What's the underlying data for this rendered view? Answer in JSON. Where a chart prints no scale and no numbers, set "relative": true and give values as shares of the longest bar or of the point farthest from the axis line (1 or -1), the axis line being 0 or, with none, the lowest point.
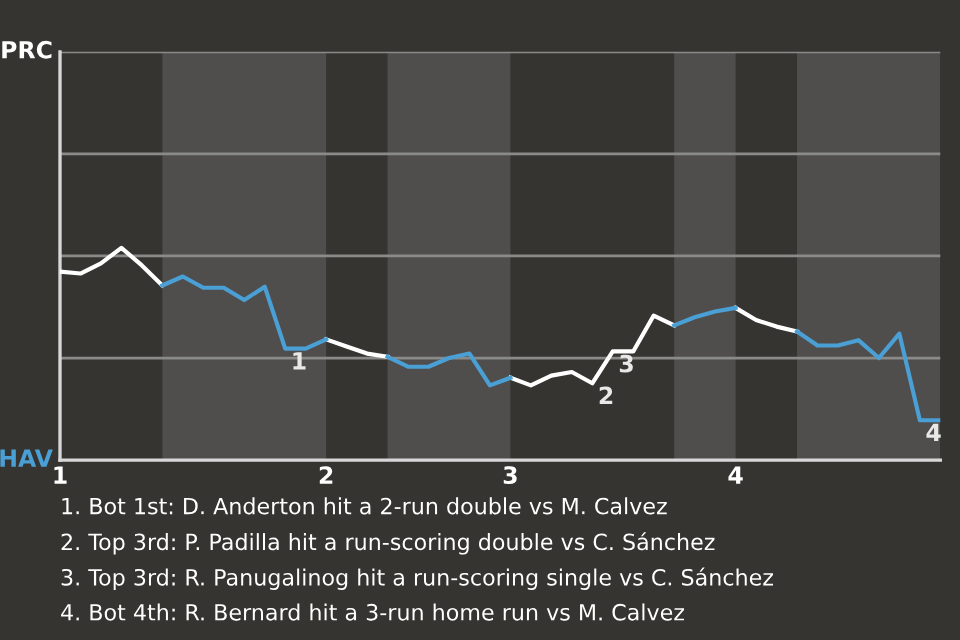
{
  "chart_data": {
    "type": "line",
    "relative": true,
    "categories": [
      "1",
      null,
      null,
      null,
      null,
      null,
      null,
      null,
      null,
      null,
      null,
      null,
      null,
      "2",
      null,
      null,
      null,
      null,
      null,
      null,
      null,
      null,
      "3",
      null,
      null,
      null,
      null,
      null,
      null,
      null,
      null,
      null,
      null,
      "4",
      null,
      null,
      null,
      null,
      null,
      null,
      null,
      null,
      null,
      null
    ],
    "series": [
      {
        "color": "#ffffff",
        "values": [
          0.888,
          0.879,
          0.927,
          1,
          0.917,
          0.823,
          null,
          null,
          null,
          null,
          null,
          null,
          null,
          0.569,
          0.535,
          0.502,
          0.487,
          null,
          null,
          null,
          null,
          null,
          0.388,
          0.352,
          0.398,
          0.415,
          0.362,
          0.512,
          0.512,
          0.681,
          0.635,
          null,
          null,
          0.717,
          0.66,
          0.629,
          0.606,
          null,
          null,
          null,
          null,
          null,
          null,
          null
        ]
      },
      {
        "color": "#4a9fd4",
        "values": [
          null,
          null,
          null,
          null,
          null,
          0.823,
          0.865,
          0.812,
          0.812,
          0.754,
          0.817,
          0.525,
          0.525,
          0.569,
          null,
          null,
          0.487,
          0.44,
          0.44,
          0.481,
          0.502,
          0.352,
          0.388,
          null,
          null,
          null,
          null,
          null,
          null,
          null,
          0.635,
          0.673,
          0.7,
          0.717,
          null,
          null,
          0.606,
          0.54,
          0.54,
          0.565,
          0.481,
          0.596,
          0.188,
          0.188
        ]
      }
    ],
    "ref_lines": [
      {
        "axis": "y",
        "value": 0.481,
        "label": null,
        "color": "#8a8a88"
      },
      {
        "axis": "y",
        "value": 0.962,
        "label": null,
        "color": "#8a8a88"
      },
      {
        "axis": "y",
        "value": 1.442,
        "label": null,
        "color": "#8a8a88"
      },
      {
        "axis": "y",
        "value": 1.923,
        "label": null,
        "color": "#8a8a88"
      }
    ],
    "annotations": [
      {
        "text": "1",
        "y": 0.525
      },
      {
        "text": "2",
        "y": 0.362
      },
      {
        "text": "3",
        "y": 0.512
      },
      {
        "text": "4",
        "y": 0.188
      },
      "PRC",
      "HAV",
      "1. Bot 1st: D. Anderton hit a 2-run double vs M. Calvez",
      "2. Top 3rd: P. Padilla hit a run-scoring double vs C. Sánchez",
      "3. Top 3rd: R. Panugalinog hit a run-scoring single vs C. Sánchez",
      "4. Bot 4th: R. Bernard hit a 3-run home run vs M. Calvez"
    ]
  }
}
